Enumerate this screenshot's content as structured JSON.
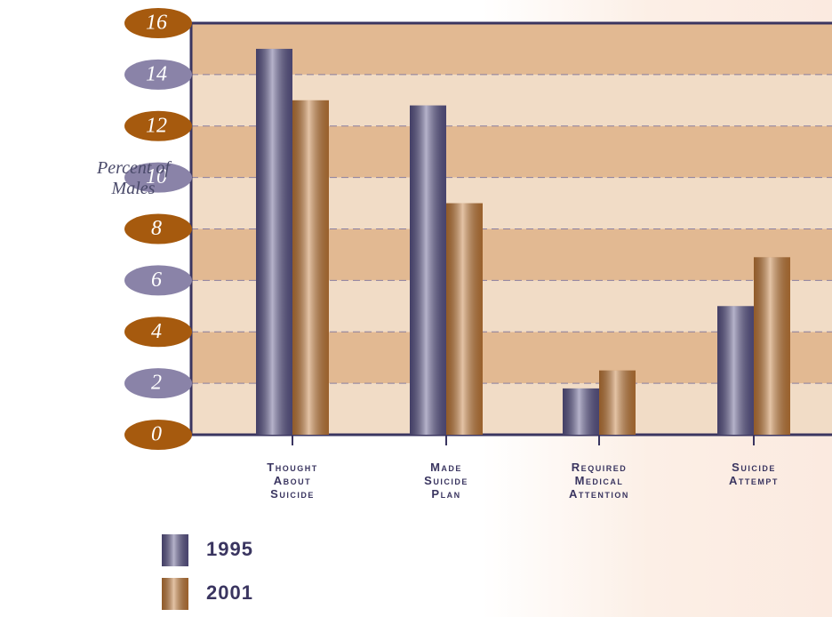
{
  "chart_data": {
    "type": "bar",
    "y_label": "Percent of Males",
    "categories": [
      "Thought About Suicide",
      "Made Suicide Plan",
      "Required Medical Attention",
      "Suicide Attempt"
    ],
    "series": [
      {
        "name": "1995",
        "color": "#5b5589",
        "values": [
          15,
          12.8,
          1.8,
          5.0
        ]
      },
      {
        "name": "2001",
        "color": "#c27a38",
        "values": [
          13,
          9,
          2.5,
          6.9
        ]
      }
    ],
    "ylim": [
      0,
      16
    ],
    "yticks": [
      0,
      2,
      4,
      6,
      8,
      10,
      12,
      14,
      16
    ],
    "grid": true
  }
}
